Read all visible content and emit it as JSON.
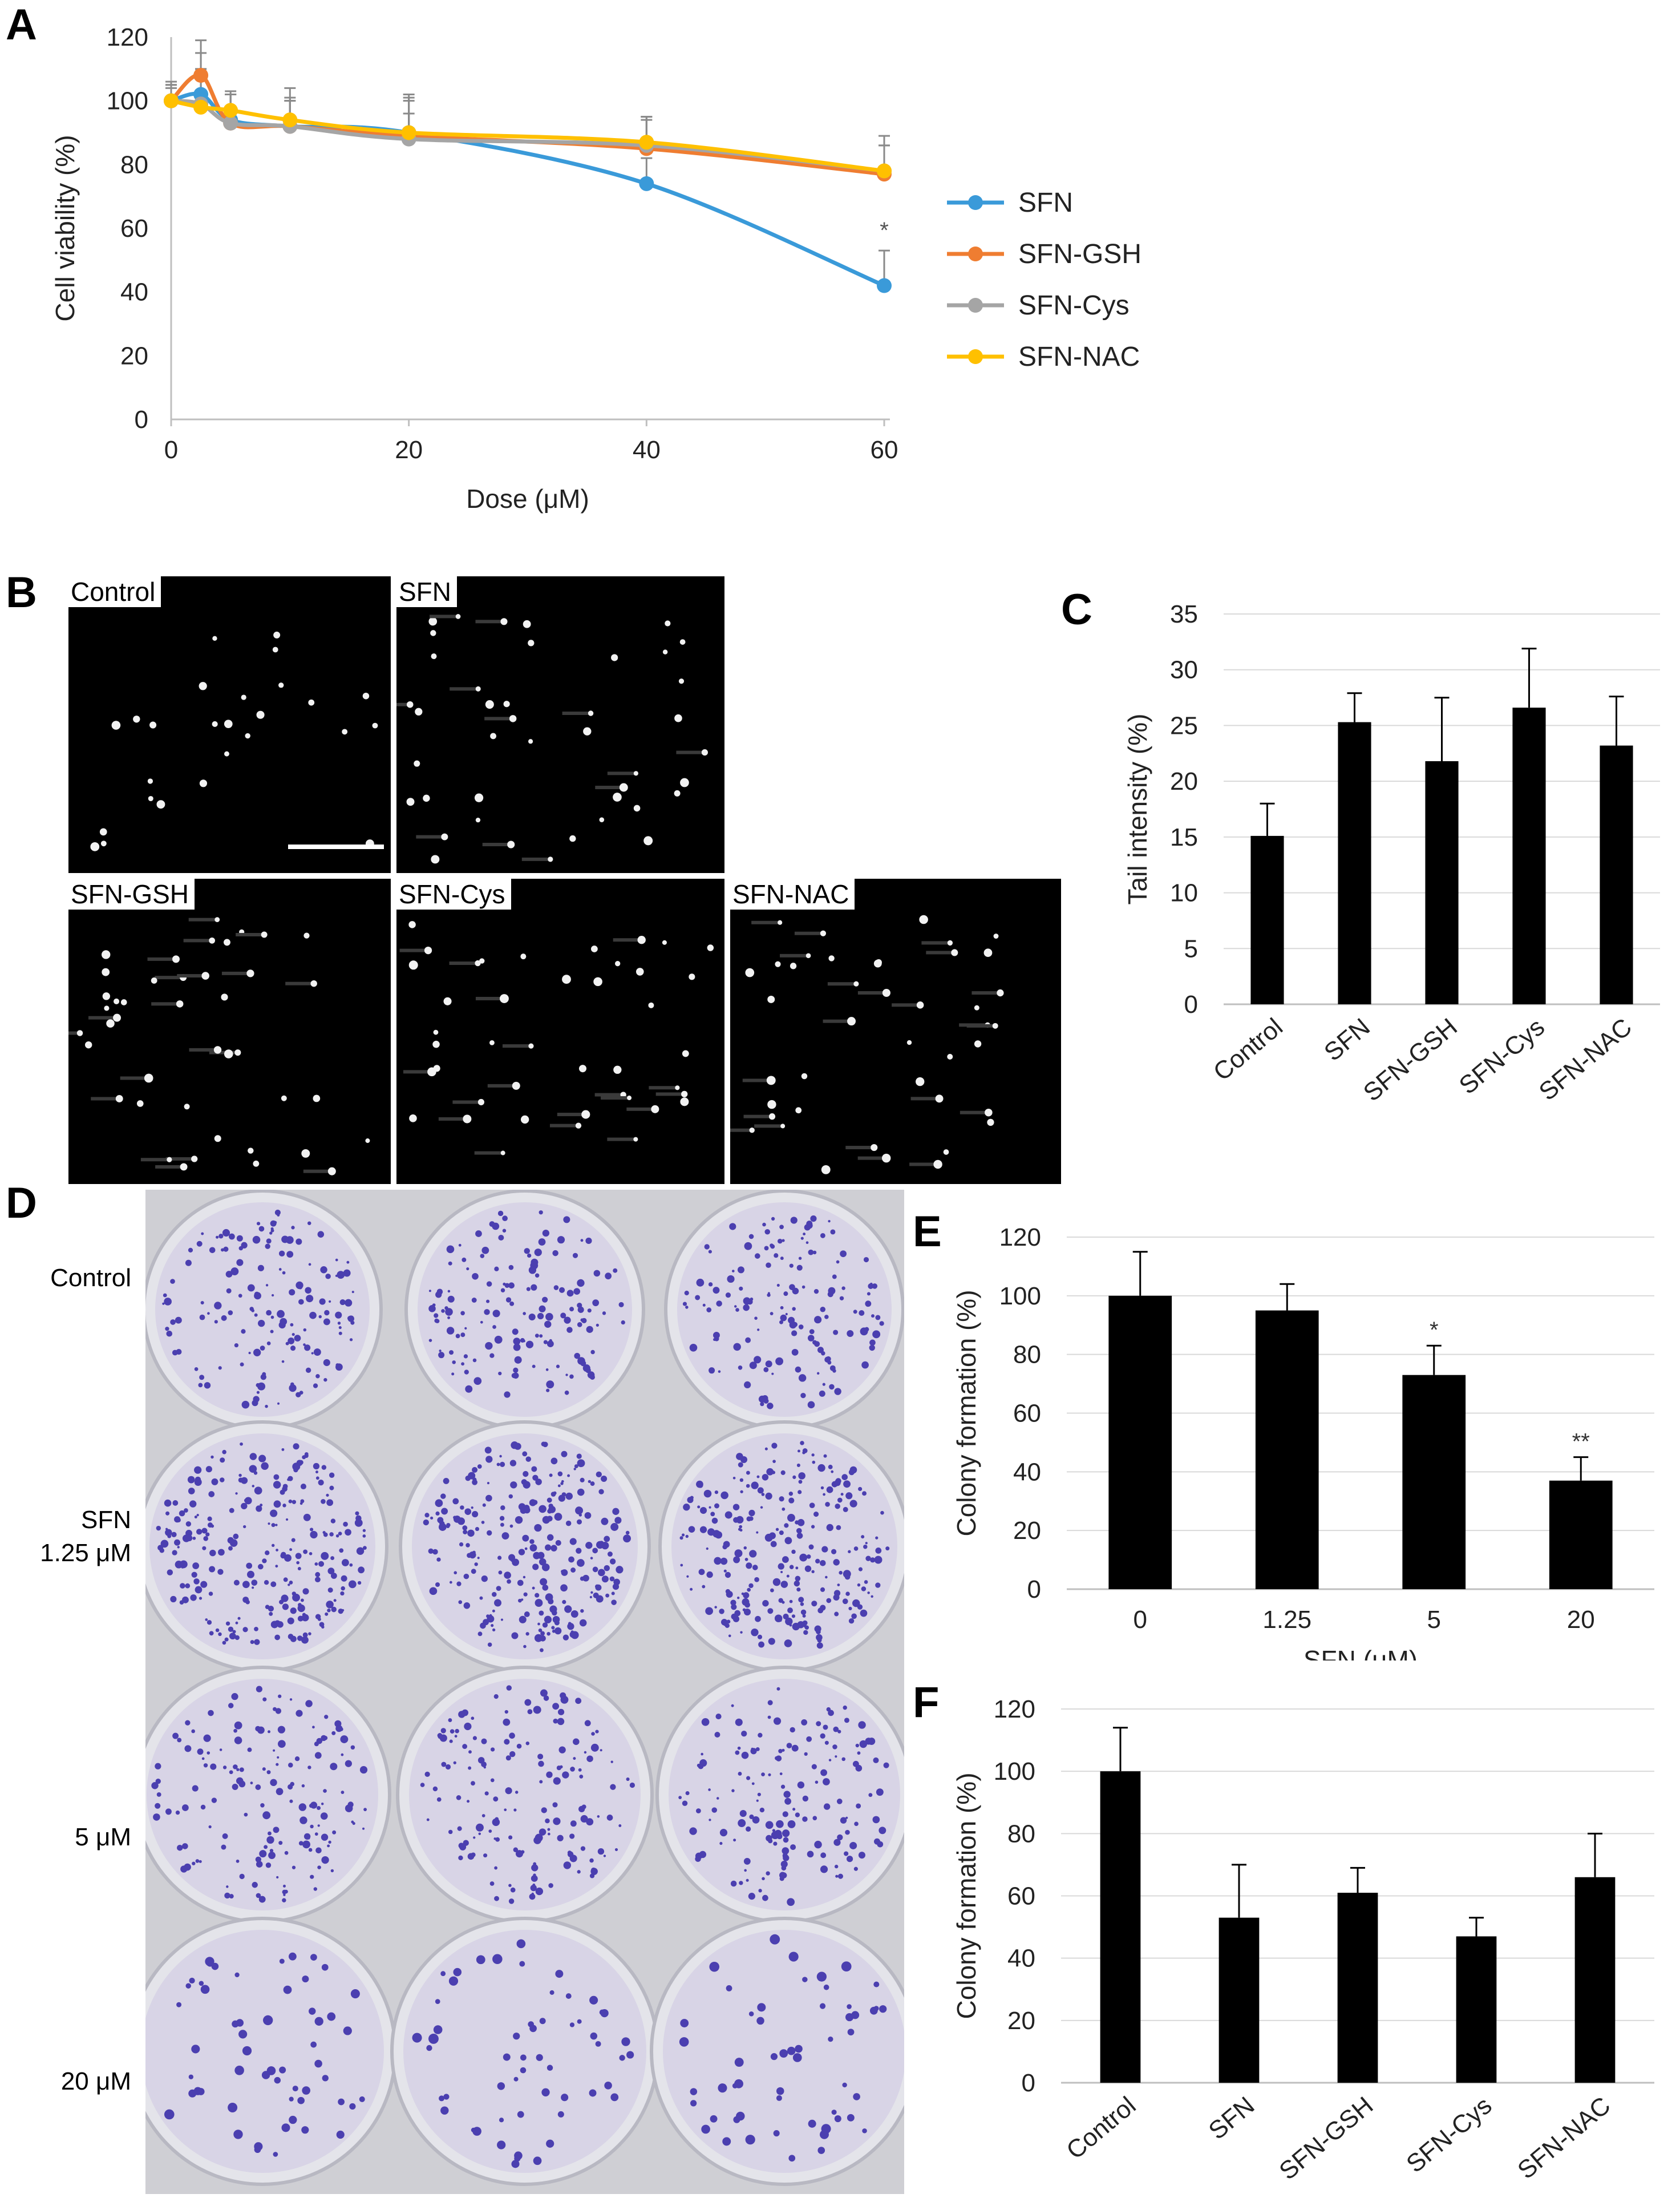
{
  "panels": {
    "A": "A",
    "B": "B",
    "C": "C",
    "D": "D",
    "E": "E",
    "F": "F"
  },
  "chart_data": [
    {
      "id": "A",
      "type": "line",
      "xlabel": "Dose (μM)",
      "ylabel": "Cell viability  (%)",
      "xlim": [
        0,
        60
      ],
      "ylim": [
        0,
        120
      ],
      "xticks": [
        0,
        20,
        40,
        60
      ],
      "yticks": [
        0,
        20,
        40,
        60,
        80,
        100,
        120
      ],
      "legend_position": "right",
      "x": [
        0,
        2.5,
        5,
        10,
        20,
        40,
        60
      ],
      "series": [
        {
          "name": "SFN",
          "color": "#3a9ad9",
          "values": [
            100,
            102,
            94,
            92,
            90,
            74,
            42
          ],
          "errors": [
            5,
            8,
            8,
            8,
            12,
            8,
            11
          ]
        },
        {
          "name": "SFN-GSH",
          "color": "#ef7d31",
          "values": [
            100,
            108,
            93,
            92,
            89,
            85,
            77
          ],
          "errors": [
            5,
            11,
            10,
            9,
            12,
            10,
            12
          ]
        },
        {
          "name": "SFN-Cys",
          "color": "#a5a5a5",
          "values": [
            100,
            99,
            93,
            92,
            88,
            86,
            78
          ],
          "errors": [
            6,
            16,
            9,
            12,
            8,
            9,
            8
          ]
        },
        {
          "name": "SFN-NAC",
          "color": "#ffc000",
          "values": [
            100,
            98,
            97,
            94,
            90,
            87,
            78
          ],
          "errors": [
            4,
            12,
            5,
            6,
            10,
            7,
            8
          ]
        }
      ],
      "annotations": [
        {
          "x": 60,
          "text": "*"
        }
      ]
    },
    {
      "id": "C",
      "type": "bar",
      "ylabel": "Tail intensity (%)",
      "ylim": [
        0,
        35
      ],
      "yticks": [
        0,
        5,
        10,
        15,
        20,
        25,
        30,
        35
      ],
      "categories": [
        "Control",
        "SFN",
        "SFN-GSH",
        "SFN-Cys",
        "SFN-NAC"
      ],
      "values": [
        15.1,
        25.3,
        21.8,
        26.6,
        23.2
      ],
      "errors": [
        2.9,
        2.6,
        5.7,
        5.3,
        4.4
      ]
    },
    {
      "id": "E",
      "type": "bar",
      "xlabel": "SFN (μM)",
      "ylabel": "Colony formation (%)",
      "ylim": [
        0,
        120
      ],
      "yticks": [
        0,
        20,
        40,
        60,
        80,
        100,
        120
      ],
      "categories": [
        "0",
        "1.25",
        "5",
        "20"
      ],
      "values": [
        100,
        95,
        73,
        37
      ],
      "errors": [
        15,
        9,
        10,
        8
      ],
      "annotations": [
        "",
        "",
        "*",
        "**"
      ]
    },
    {
      "id": "F",
      "type": "bar",
      "ylabel": "Colony formation (%)",
      "ylim": [
        0,
        120
      ],
      "yticks": [
        0,
        20,
        40,
        60,
        80,
        100,
        120
      ],
      "categories": [
        "Control",
        "SFN",
        "SFN-GSH",
        "SFN-Cys",
        "SFN-NAC"
      ],
      "values": [
        100,
        53,
        61,
        47,
        66
      ],
      "errors": [
        14,
        17,
        8,
        6,
        14
      ]
    }
  ],
  "micrographs": {
    "labels": [
      "Control",
      "SFN",
      "SFN-GSH",
      "SFN-Cys",
      "SFN-NAC"
    ]
  },
  "colony_rows": {
    "control": "Control",
    "sfn_line1": "SFN",
    "sfn_line2": "1.25 μM",
    "five": "5 μM",
    "twenty": "20 μM"
  }
}
